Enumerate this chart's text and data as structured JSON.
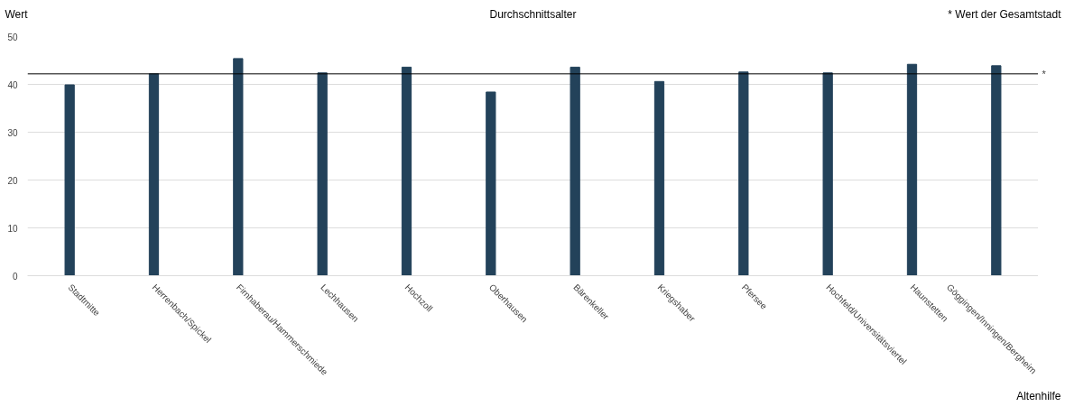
{
  "chart_data": {
    "type": "bar",
    "title": "Durchschnittsalter",
    "ylabel": "Wert",
    "categories": [
      "Stadtmitte",
      "Herrenbach/Spickel",
      "Firnhaberau/Hammerschmiede",
      "Lechhausen",
      "Hochzoll",
      "Oberhausen",
      "Bärenkeller",
      "Kriegshaber",
      "Pfersee",
      "Hochfeld/Universitätsviertel",
      "Haunstetten",
      "Göggingen/Inningen/Bergheim"
    ],
    "values": [
      39.9,
      42.2,
      45.4,
      42.4,
      43.6,
      38.4,
      43.6,
      40.6,
      42.6,
      42.4,
      44.2,
      43.9
    ],
    "color": "#23425a",
    "ylim": [
      0,
      50
    ],
    "yticks": [
      0,
      10,
      20,
      30,
      40,
      50
    ],
    "grid": "y",
    "ref_lines": [
      {
        "axis": "y",
        "value": 42.2,
        "label": "*",
        "color": "#000000"
      }
    ],
    "annotations": [
      "* Wert der Gesamtstadt",
      "Altenhilfe"
    ]
  }
}
